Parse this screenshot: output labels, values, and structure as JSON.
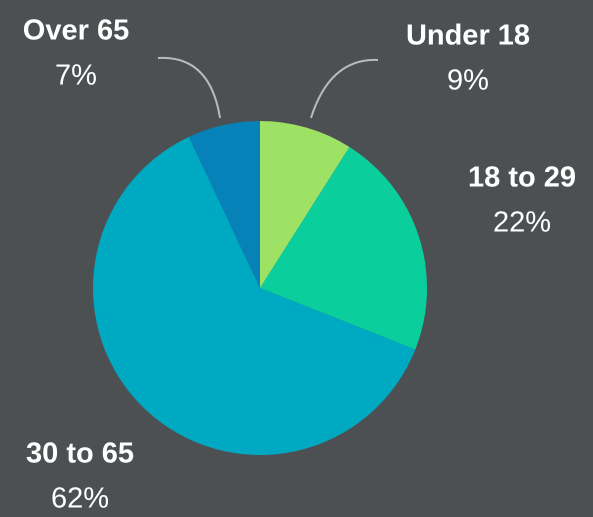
{
  "chart_data": {
    "type": "pie",
    "categories": [
      "Under 18",
      "18 to 29",
      "30 to 65",
      "Over 65"
    ],
    "values": [
      9,
      22,
      62,
      7
    ],
    "value_labels": [
      "9%",
      "22%",
      "62%",
      "7%"
    ],
    "colors": [
      "#9ee265",
      "#0acf9c",
      "#00a9c2",
      "#0782b8"
    ]
  }
}
